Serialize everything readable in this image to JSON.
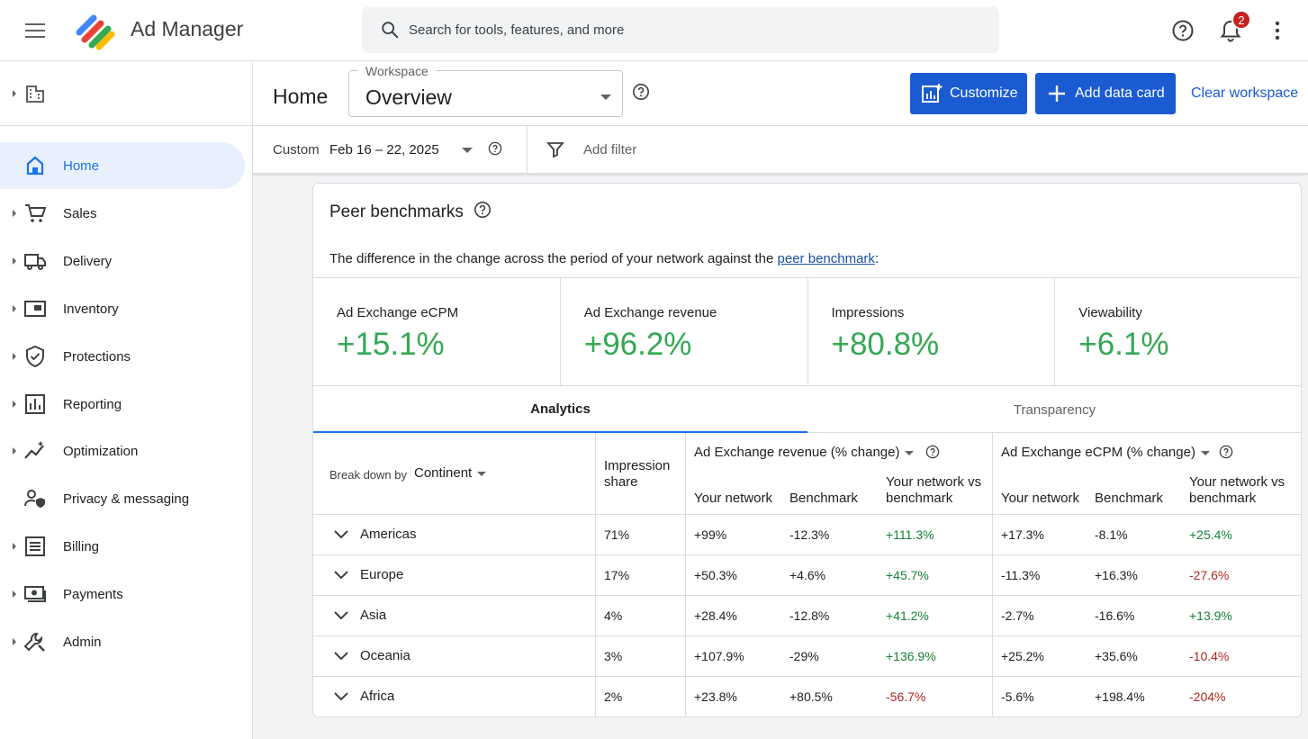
{
  "app": {
    "title": "Ad Manager"
  },
  "search": {
    "placeholder": "Search for tools, features, and more"
  },
  "notifications": {
    "count": "2"
  },
  "sidebar": {
    "items": [
      {
        "label": "Home",
        "active": true
      },
      {
        "label": "Sales"
      },
      {
        "label": "Delivery"
      },
      {
        "label": "Inventory"
      },
      {
        "label": "Protections"
      },
      {
        "label": "Reporting"
      },
      {
        "label": "Optimization"
      },
      {
        "label": "Privacy & messaging"
      },
      {
        "label": "Billing"
      },
      {
        "label": "Payments"
      },
      {
        "label": "Admin"
      }
    ]
  },
  "header": {
    "title": "Home",
    "workspace_label": "Workspace",
    "workspace_value": "Overview",
    "customize_label": "Customize",
    "add_card_label": "Add data card",
    "clear_label": "Clear workspace"
  },
  "filters": {
    "range_type": "Custom",
    "date_range": "Feb 16 – 22, 2025",
    "add_filter": "Add filter"
  },
  "card": {
    "title": "Peer benchmarks",
    "description": "The difference in the change across the period of your network against the",
    "description_link": "peer benchmark",
    "description_suffix": ":",
    "metrics": [
      {
        "label": "Ad Exchange eCPM",
        "value": "+15.1%"
      },
      {
        "label": "Ad Exchange revenue",
        "value": "+96.2%"
      },
      {
        "label": "Impressions",
        "value": "+80.8%"
      },
      {
        "label": "Viewability",
        "value": "+6.1%"
      }
    ],
    "tabs": {
      "analytics": "Analytics",
      "transparency": "Transparency"
    },
    "table": {
      "breakdown_label": "Break down by",
      "breakdown_value": "Continent",
      "impression_share": "Impression share",
      "revenue_group": "Ad Exchange revenue (% change)",
      "ecpm_group": "Ad Exchange eCPM (% change)",
      "col_your_network": "Your network",
      "col_benchmark": "Benchmark",
      "col_vs": "Your network vs benchmark",
      "rows": [
        {
          "region": "Americas",
          "share": "71%",
          "rev_net": "+99%",
          "rev_bench": "-12.3%",
          "rev_vs": "+111.3%",
          "ecpm_net": "+17.3%",
          "ecpm_bench": "-8.1%",
          "ecpm_vs": "+25.4%"
        },
        {
          "region": "Europe",
          "share": "17%",
          "rev_net": "+50.3%",
          "rev_bench": "+4.6%",
          "rev_vs": "+45.7%",
          "ecpm_net": "-11.3%",
          "ecpm_bench": "+16.3%",
          "ecpm_vs": "-27.6%"
        },
        {
          "region": "Asia",
          "share": "4%",
          "rev_net": "+28.4%",
          "rev_bench": "-12.8%",
          "rev_vs": "+41.2%",
          "ecpm_net": "-2.7%",
          "ecpm_bench": "-16.6%",
          "ecpm_vs": "+13.9%"
        },
        {
          "region": "Oceania",
          "share": "3%",
          "rev_net": "+107.9%",
          "rev_bench": "-29%",
          "rev_vs": "+136.9%",
          "ecpm_net": "+25.2%",
          "ecpm_bench": "+35.6%",
          "ecpm_vs": "-10.4%"
        },
        {
          "region": "Africa",
          "share": "2%",
          "rev_net": "+23.8%",
          "rev_bench": "+80.5%",
          "rev_vs": "-56.7%",
          "ecpm_net": "-5.6%",
          "ecpm_bench": "+198.4%",
          "ecpm_vs": "-204%"
        }
      ]
    }
  },
  "colors": {
    "accent": "#1a5bd1",
    "positive": "#188038",
    "negative": "#b3261e",
    "metric_green": "#34a853"
  }
}
